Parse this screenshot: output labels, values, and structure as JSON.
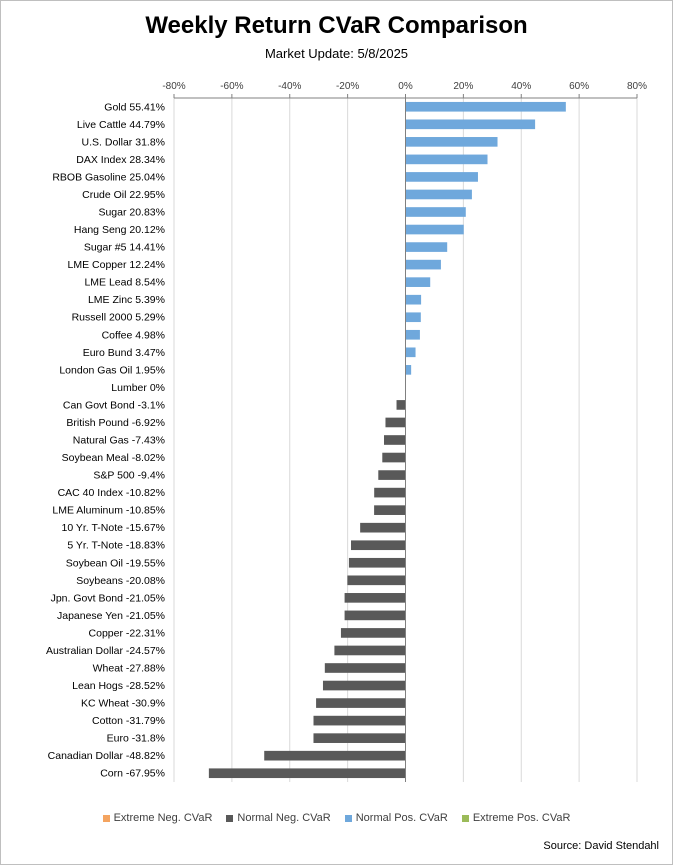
{
  "chart_data": {
    "type": "bar",
    "orientation": "horizontal",
    "title": "Weekly Return CVaR Comparison",
    "subtitle": "Market Update: 5/8/2025",
    "xlim": [
      -80,
      80
    ],
    "x_ticks": [
      "-80%",
      "-60%",
      "-40%",
      "-20%",
      "0%",
      "20%",
      "40%",
      "60%",
      "80%"
    ],
    "x_tick_values": [
      -80,
      -60,
      -40,
      -20,
      0,
      20,
      40,
      60,
      80
    ],
    "grid": "vertical",
    "legend_position": "bottom",
    "categories": [
      "Gold 55.41%",
      "Live Cattle 44.79%",
      "U.S. Dollar 31.8%",
      "DAX Index 28.34%",
      "RBOB Gasoline 25.04%",
      "Crude Oil 22.95%",
      "Sugar 20.83%",
      "Hang Seng 20.12%",
      "Sugar #5 14.41%",
      "LME Copper 12.24%",
      "LME Lead 8.54%",
      "LME Zinc 5.39%",
      "Russell 2000 5.29%",
      "Coffee 4.98%",
      "Euro Bund 3.47%",
      "London Gas Oil 1.95%",
      "Lumber 0%",
      "Can Govt Bond -3.1%",
      "British Pound -6.92%",
      "Natural Gas -7.43%",
      "Soybean Meal -8.02%",
      "S&P 500 -9.4%",
      "CAC 40 Index -10.82%",
      "LME Aluminum -10.85%",
      "10 Yr. T-Note -15.67%",
      "5 Yr. T-Note -18.83%",
      "Soybean Oil -19.55%",
      "Soybeans -20.08%",
      "Jpn. Govt Bond -21.05%",
      "Japanese Yen -21.05%",
      "Copper -22.31%",
      "Australian Dollar -24.57%",
      "Wheat -27.88%",
      "Lean Hogs -28.52%",
      "KC Wheat -30.9%",
      "Cotton -31.79%",
      "Euro -31.8%",
      "Canadian Dollar -48.82%",
      "Corn -67.95%"
    ],
    "values": [
      55.41,
      44.79,
      31.8,
      28.34,
      25.04,
      22.95,
      20.83,
      20.12,
      14.41,
      12.24,
      8.54,
      5.39,
      5.29,
      4.98,
      3.47,
      1.95,
      0,
      -3.1,
      -6.92,
      -7.43,
      -8.02,
      -9.4,
      -10.82,
      -10.85,
      -15.67,
      -18.83,
      -19.55,
      -20.08,
      -21.05,
      -21.05,
      -22.31,
      -24.57,
      -27.88,
      -28.52,
      -30.9,
      -31.79,
      -31.8,
      -48.82,
      -67.95
    ],
    "series": [
      {
        "name": "Extreme Neg. CVaR",
        "color": "#f4a460"
      },
      {
        "name": "Normal Neg. CVaR",
        "color": "#595959"
      },
      {
        "name": "Normal Pos. CVaR",
        "color": "#6fa8dc"
      },
      {
        "name": "Extreme Pos. CVaR",
        "color": "#9bbb59"
      }
    ],
    "source": "Source: David Stendahl"
  }
}
